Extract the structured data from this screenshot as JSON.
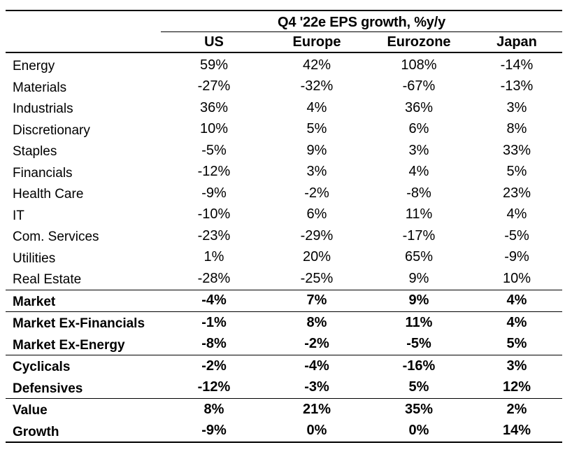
{
  "table": {
    "group_title": "Q4 '22e EPS growth, %y/y",
    "columns": [
      "US",
      "Europe",
      "Eurozone",
      "Japan"
    ],
    "sectors": [
      {
        "label": "Energy",
        "values": [
          "59%",
          "42%",
          "108%",
          "-14%"
        ]
      },
      {
        "label": "Materials",
        "values": [
          "-27%",
          "-32%",
          "-67%",
          "-13%"
        ]
      },
      {
        "label": "Industrials",
        "values": [
          "36%",
          "4%",
          "36%",
          "3%"
        ]
      },
      {
        "label": "Discretionary",
        "values": [
          "10%",
          "5%",
          "6%",
          "8%"
        ]
      },
      {
        "label": "Staples",
        "values": [
          "-5%",
          "9%",
          "3%",
          "33%"
        ]
      },
      {
        "label": "Financials",
        "values": [
          "-12%",
          "3%",
          "4%",
          "5%"
        ]
      },
      {
        "label": "Health Care",
        "values": [
          "-9%",
          "-2%",
          "-8%",
          "23%"
        ]
      },
      {
        "label": "IT",
        "values": [
          "-10%",
          "6%",
          "11%",
          "4%"
        ]
      },
      {
        "label": "Com. Services",
        "values": [
          "-23%",
          "-29%",
          "-17%",
          "-5%"
        ]
      },
      {
        "label": "Utilities",
        "values": [
          "1%",
          "20%",
          "65%",
          "-9%"
        ]
      },
      {
        "label": "Real Estate",
        "values": [
          "-28%",
          "-25%",
          "9%",
          "10%"
        ]
      }
    ],
    "market": [
      {
        "label": "Market",
        "values": [
          "-4%",
          "7%",
          "9%",
          "4%"
        ]
      }
    ],
    "market_ex": [
      {
        "label": "Market Ex-Financials",
        "values": [
          "-1%",
          "8%",
          "11%",
          "4%"
        ]
      },
      {
        "label": "Market Ex-Energy",
        "values": [
          "-8%",
          "-2%",
          "-5%",
          "5%"
        ]
      }
    ],
    "cyc_def": [
      {
        "label": "Cyclicals",
        "values": [
          "-2%",
          "-4%",
          "-16%",
          "3%"
        ]
      },
      {
        "label": "Defensives",
        "values": [
          "-12%",
          "-3%",
          "5%",
          "12%"
        ]
      }
    ],
    "style": [
      {
        "label": "Value",
        "values": [
          "8%",
          "21%",
          "35%",
          "2%"
        ]
      },
      {
        "label": "Growth",
        "values": [
          "-9%",
          "0%",
          "0%",
          "14%"
        ]
      }
    ]
  }
}
